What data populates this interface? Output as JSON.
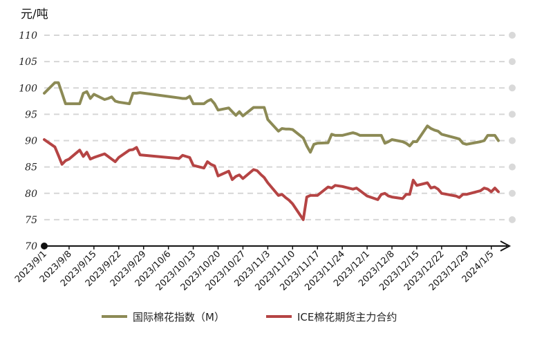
{
  "chart_data": {
    "type": "line",
    "unit_label": "元/吨",
    "ylim": [
      70,
      110
    ],
    "yticks": [
      "70",
      "75",
      "80",
      "85",
      "90",
      "95",
      "100",
      "105",
      "110"
    ],
    "xlim": [
      "2023-09-01",
      "2024-01-07"
    ],
    "xticks": [
      {
        "date": "2023-09-01",
        "label": "2023/9/1"
      },
      {
        "date": "2023-09-08",
        "label": "2023/9/8"
      },
      {
        "date": "2023-09-15",
        "label": "2023/9/15"
      },
      {
        "date": "2023-09-22",
        "label": "2023/9/22"
      },
      {
        "date": "2023-09-29",
        "label": "2023/9/29"
      },
      {
        "date": "2023-10-06",
        "label": "2023/10/6"
      },
      {
        "date": "2023-10-13",
        "label": "2023/10/13"
      },
      {
        "date": "2023-10-20",
        "label": "2023/10/20"
      },
      {
        "date": "2023-10-27",
        "label": "2023/10/27"
      },
      {
        "date": "2023-11-03",
        "label": "2023/11/3"
      },
      {
        "date": "2023-11-10",
        "label": "2023/11/10"
      },
      {
        "date": "2023-11-17",
        "label": "2023/11/17"
      },
      {
        "date": "2023-11-24",
        "label": "2023/11/24"
      },
      {
        "date": "2023-12-01",
        "label": "2023/12/1"
      },
      {
        "date": "2023-12-08",
        "label": "2023/12/8"
      },
      {
        "date": "2023-12-15",
        "label": "2023/12/15"
      },
      {
        "date": "2023-12-22",
        "label": "2023/12/22"
      },
      {
        "date": "2023-12-29",
        "label": "2023/12/29"
      },
      {
        "date": "2024-01-05",
        "label": "2024/1/5"
      }
    ],
    "grid": "horizontal-dashed",
    "legend_position": "bottom",
    "series": [
      {
        "name": "国际棉花指数（M）",
        "color": "#8c8a55",
        "points": [
          [
            "2023-09-01",
            99.0
          ],
          [
            "2023-09-04",
            101.0
          ],
          [
            "2023-09-05",
            101.0
          ],
          [
            "2023-09-06",
            99.0
          ],
          [
            "2023-09-07",
            97.0
          ],
          [
            "2023-09-08",
            97.0
          ],
          [
            "2023-09-11",
            97.0
          ],
          [
            "2023-09-12",
            99.0
          ],
          [
            "2023-09-13",
            99.3
          ],
          [
            "2023-09-14",
            98.0
          ],
          [
            "2023-09-15",
            98.8
          ],
          [
            "2023-09-18",
            97.8
          ],
          [
            "2023-09-19",
            98.0
          ],
          [
            "2023-09-20",
            98.3
          ],
          [
            "2023-09-21",
            97.5
          ],
          [
            "2023-09-22",
            97.3
          ],
          [
            "2023-09-25",
            97.0
          ],
          [
            "2023-09-26",
            99.0
          ],
          [
            "2023-09-27",
            99.0
          ],
          [
            "2023-09-28",
            99.1
          ],
          [
            "2023-10-09",
            98.1
          ],
          [
            "2023-10-10",
            98.0
          ],
          [
            "2023-10-11",
            98.0
          ],
          [
            "2023-10-12",
            98.4
          ],
          [
            "2023-10-13",
            97.0
          ],
          [
            "2023-10-16",
            97.0
          ],
          [
            "2023-10-17",
            97.5
          ],
          [
            "2023-10-18",
            97.8
          ],
          [
            "2023-10-19",
            97.0
          ],
          [
            "2023-10-20",
            95.8
          ],
          [
            "2023-10-23",
            96.2
          ],
          [
            "2023-10-24",
            95.5
          ],
          [
            "2023-10-25",
            94.8
          ],
          [
            "2023-10-26",
            95.5
          ],
          [
            "2023-10-27",
            94.7
          ],
          [
            "2023-10-30",
            96.3
          ],
          [
            "2023-10-31",
            96.3
          ],
          [
            "2023-11-01",
            96.3
          ],
          [
            "2023-11-02",
            96.3
          ],
          [
            "2023-11-03",
            94.0
          ],
          [
            "2023-11-06",
            91.8
          ],
          [
            "2023-11-07",
            92.3
          ],
          [
            "2023-11-08",
            92.2
          ],
          [
            "2023-11-09",
            92.2
          ],
          [
            "2023-11-10",
            92.1
          ],
          [
            "2023-11-13",
            90.5
          ],
          [
            "2023-11-14",
            89.0
          ],
          [
            "2023-11-15",
            87.8
          ],
          [
            "2023-11-16",
            89.3
          ],
          [
            "2023-11-17",
            89.5
          ],
          [
            "2023-11-20",
            89.6
          ],
          [
            "2023-11-21",
            91.2
          ],
          [
            "2023-11-22",
            91.0
          ],
          [
            "2023-11-24",
            91.0
          ],
          [
            "2023-11-27",
            91.5
          ],
          [
            "2023-11-28",
            91.3
          ],
          [
            "2023-11-29",
            91.0
          ],
          [
            "2023-11-30",
            91.0
          ],
          [
            "2023-12-01",
            91.0
          ],
          [
            "2023-12-04",
            91.0
          ],
          [
            "2023-12-05",
            91.0
          ],
          [
            "2023-12-06",
            89.5
          ],
          [
            "2023-12-07",
            89.8
          ],
          [
            "2023-12-08",
            90.2
          ],
          [
            "2023-12-11",
            89.8
          ],
          [
            "2023-12-12",
            89.5
          ],
          [
            "2023-12-13",
            89.0
          ],
          [
            "2023-12-14",
            89.8
          ],
          [
            "2023-12-15",
            89.8
          ],
          [
            "2023-12-18",
            92.8
          ],
          [
            "2023-12-19",
            92.3
          ],
          [
            "2023-12-20",
            92.0
          ],
          [
            "2023-12-21",
            91.8
          ],
          [
            "2023-12-22",
            91.2
          ],
          [
            "2023-12-26",
            90.5
          ],
          [
            "2023-12-27",
            90.3
          ],
          [
            "2023-12-28",
            89.5
          ],
          [
            "2023-12-29",
            89.3
          ],
          [
            "2024-01-02",
            89.8
          ],
          [
            "2024-01-03",
            90.0
          ],
          [
            "2024-01-04",
            91.0
          ],
          [
            "2024-01-05",
            91.0
          ],
          [
            "2024-01-06",
            91.0
          ],
          [
            "2024-01-07",
            90.0
          ]
        ]
      },
      {
        "name": "ICE棉花期货主力合约",
        "color": "#b54444",
        "points": [
          [
            "2023-09-01",
            90.2
          ],
          [
            "2023-09-04",
            88.8
          ],
          [
            "2023-09-05",
            87.2
          ],
          [
            "2023-09-06",
            85.5
          ],
          [
            "2023-09-07",
            86.2
          ],
          [
            "2023-09-08",
            86.5
          ],
          [
            "2023-09-11",
            88.2
          ],
          [
            "2023-09-12",
            87.0
          ],
          [
            "2023-09-13",
            87.8
          ],
          [
            "2023-09-14",
            86.5
          ],
          [
            "2023-09-15",
            86.8
          ],
          [
            "2023-09-18",
            87.5
          ],
          [
            "2023-09-19",
            87.0
          ],
          [
            "2023-09-20",
            86.5
          ],
          [
            "2023-09-21",
            86.0
          ],
          [
            "2023-09-22",
            86.8
          ],
          [
            "2023-09-25",
            88.2
          ],
          [
            "2023-09-26",
            88.3
          ],
          [
            "2023-09-27",
            88.7
          ],
          [
            "2023-09-28",
            87.3
          ],
          [
            "2023-10-09",
            86.6
          ],
          [
            "2023-10-10",
            87.2
          ],
          [
            "2023-10-11",
            87.0
          ],
          [
            "2023-10-12",
            86.8
          ],
          [
            "2023-10-13",
            85.3
          ],
          [
            "2023-10-16",
            84.8
          ],
          [
            "2023-10-17",
            86.0
          ],
          [
            "2023-10-18",
            85.5
          ],
          [
            "2023-10-19",
            85.2
          ],
          [
            "2023-10-20",
            83.3
          ],
          [
            "2023-10-23",
            84.2
          ],
          [
            "2023-10-24",
            82.6
          ],
          [
            "2023-10-25",
            83.2
          ],
          [
            "2023-10-26",
            83.5
          ],
          [
            "2023-10-27",
            82.8
          ],
          [
            "2023-10-30",
            84.5
          ],
          [
            "2023-10-31",
            84.3
          ],
          [
            "2023-11-01",
            83.6
          ],
          [
            "2023-11-02",
            83.0
          ],
          [
            "2023-11-03",
            82.0
          ],
          [
            "2023-11-06",
            79.6
          ],
          [
            "2023-11-07",
            79.8
          ],
          [
            "2023-11-08",
            79.2
          ],
          [
            "2023-11-09",
            78.7
          ],
          [
            "2023-11-10",
            78.0
          ],
          [
            "2023-11-13",
            75.0
          ],
          [
            "2023-11-14",
            79.3
          ],
          [
            "2023-11-15",
            79.6
          ],
          [
            "2023-11-16",
            79.6
          ],
          [
            "2023-11-17",
            79.6
          ],
          [
            "2023-11-20",
            81.2
          ],
          [
            "2023-11-21",
            81.0
          ],
          [
            "2023-11-22",
            81.5
          ],
          [
            "2023-11-24",
            81.3
          ],
          [
            "2023-11-27",
            80.8
          ],
          [
            "2023-11-28",
            81.0
          ],
          [
            "2023-11-29",
            80.5
          ],
          [
            "2023-11-30",
            80.0
          ],
          [
            "2023-12-01",
            79.5
          ],
          [
            "2023-12-04",
            78.8
          ],
          [
            "2023-12-05",
            79.8
          ],
          [
            "2023-12-06",
            80.0
          ],
          [
            "2023-12-07",
            79.5
          ],
          [
            "2023-12-08",
            79.3
          ],
          [
            "2023-12-11",
            79.0
          ],
          [
            "2023-12-12",
            79.8
          ],
          [
            "2023-12-13",
            79.8
          ],
          [
            "2023-12-14",
            82.5
          ],
          [
            "2023-12-15",
            81.5
          ],
          [
            "2023-12-18",
            82.0
          ],
          [
            "2023-12-19",
            81.0
          ],
          [
            "2023-12-20",
            81.2
          ],
          [
            "2023-12-21",
            80.8
          ],
          [
            "2023-12-22",
            80.0
          ],
          [
            "2023-12-26",
            79.5
          ],
          [
            "2023-12-27",
            79.2
          ],
          [
            "2023-12-28",
            79.8
          ],
          [
            "2023-12-29",
            79.8
          ],
          [
            "2024-01-02",
            80.5
          ],
          [
            "2024-01-03",
            81.0
          ],
          [
            "2024-01-04",
            80.8
          ],
          [
            "2024-01-05",
            80.3
          ],
          [
            "2024-01-06",
            81.0
          ],
          [
            "2024-01-07",
            80.3
          ]
        ]
      }
    ]
  }
}
